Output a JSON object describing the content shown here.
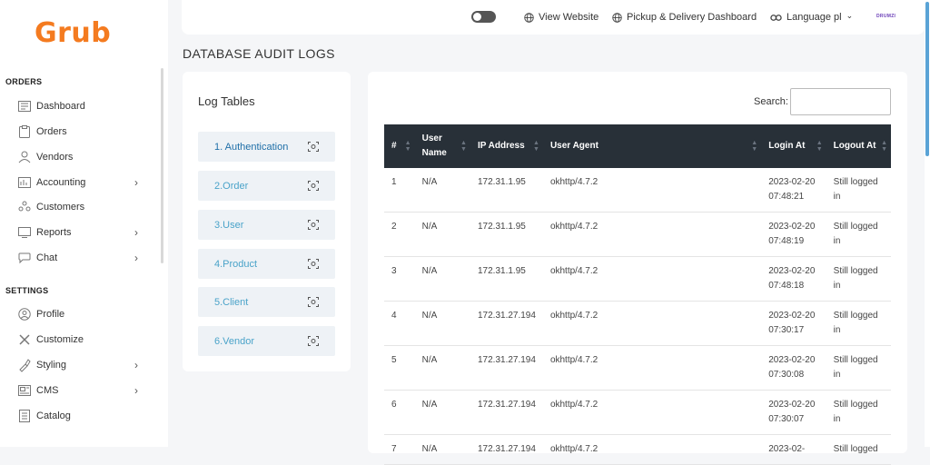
{
  "brand": {
    "logo_text": "Grub",
    "logo_color": "#f47b20"
  },
  "sidebar": {
    "sections": [
      {
        "title": "ORDERS",
        "items": [
          {
            "label": "Dashboard",
            "icon": "dashboard-icon",
            "has_submenu": false
          },
          {
            "label": "Orders",
            "icon": "orders-icon",
            "has_submenu": false
          },
          {
            "label": "Vendors",
            "icon": "vendors-icon",
            "has_submenu": false
          },
          {
            "label": "Accounting",
            "icon": "accounting-icon",
            "has_submenu": true
          },
          {
            "label": "Customers",
            "icon": "customers-icon",
            "has_submenu": false
          },
          {
            "label": "Reports",
            "icon": "reports-icon",
            "has_submenu": true
          },
          {
            "label": "Chat",
            "icon": "chat-icon",
            "has_submenu": true
          }
        ]
      },
      {
        "title": "SETTINGS",
        "items": [
          {
            "label": "Profile",
            "icon": "profile-icon",
            "has_submenu": false
          },
          {
            "label": "Customize",
            "icon": "customize-icon",
            "has_submenu": false
          },
          {
            "label": "Styling",
            "icon": "styling-icon",
            "has_submenu": true
          },
          {
            "label": "CMS",
            "icon": "cms-icon",
            "has_submenu": true
          },
          {
            "label": "Catalog",
            "icon": "catalog-icon",
            "has_submenu": false
          }
        ]
      }
    ],
    "chevron": "›"
  },
  "header": {
    "view_website": "View Website",
    "pickup_dashboard": "Pickup & Delivery Dashboard",
    "language": "Language pl",
    "language_caret": "⌄",
    "username": "DRUMZI"
  },
  "page": {
    "title": "DATABASE AUDIT LOGS"
  },
  "log_tables": {
    "title": "Log Tables",
    "items": [
      "1. Authentication",
      "2.Order",
      "3.User",
      "4.Product",
      "5.Client",
      "6.Vendor"
    ]
  },
  "search": {
    "label": "Search:",
    "value": ""
  },
  "table": {
    "columns": [
      "#",
      "User Name",
      "IP Address",
      "User Agent",
      "Login At",
      "Logout At"
    ],
    "rows": [
      [
        "1",
        "N/A",
        "172.31.1.95",
        "okhttp/4.7.2",
        "2023-02-20 07:48:21",
        "Still logged in"
      ],
      [
        "2",
        "N/A",
        "172.31.1.95",
        "okhttp/4.7.2",
        "2023-02-20 07:48:19",
        "Still logged in"
      ],
      [
        "3",
        "N/A",
        "172.31.1.95",
        "okhttp/4.7.2",
        "2023-02-20 07:48:18",
        "Still logged in"
      ],
      [
        "4",
        "N/A",
        "172.31.27.194",
        "okhttp/4.7.2",
        "2023-02-20 07:30:17",
        "Still logged in"
      ],
      [
        "5",
        "N/A",
        "172.31.27.194",
        "okhttp/4.7.2",
        "2023-02-20 07:30:08",
        "Still logged in"
      ],
      [
        "6",
        "N/A",
        "172.31.27.194",
        "okhttp/4.7.2",
        "2023-02-20 07:30:07",
        "Still logged in"
      ],
      [
        "7",
        "N/A",
        "172.31.27.194",
        "okhttp/4.7.2",
        "2023-02-",
        "Still logged"
      ]
    ]
  }
}
